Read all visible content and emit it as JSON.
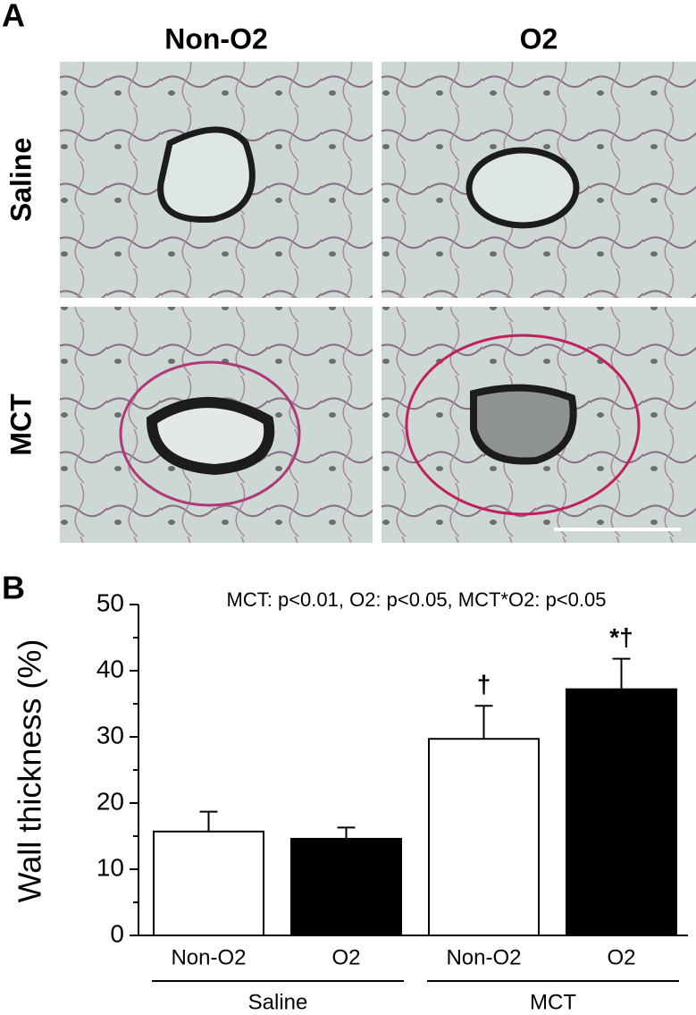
{
  "panel_a": {
    "label": "A",
    "columns": [
      "Non-O2",
      "O2"
    ],
    "rows": [
      "Saline",
      "MCT"
    ]
  },
  "chart_data": {
    "type": "bar",
    "panel_label": "B",
    "annotation": "MCT: p<0.01, O2: p<0.05, MCT*O2: p<0.05",
    "y_label": "Wall thickness (%)",
    "categories": [
      "Non-O2",
      "O2",
      "Non-O2",
      "O2"
    ],
    "groups": [
      {
        "label": "Saline",
        "span": [
          0,
          1
        ]
      },
      {
        "label": "MCT",
        "span": [
          2,
          3
        ]
      }
    ],
    "series": [
      {
        "values": [
          15.7,
          14.6,
          29.7,
          37.2
        ],
        "errors": [
          3.0,
          1.7,
          5.0,
          4.6
        ],
        "colors": [
          "#ffffff",
          "#000000",
          "#ffffff",
          "#000000"
        ]
      }
    ],
    "markers": [
      {
        "index": 2,
        "text": "†"
      },
      {
        "index": 3,
        "text": "*†"
      }
    ],
    "ylim": [
      0,
      50
    ],
    "yticks": [
      0,
      10,
      20,
      30,
      40,
      50
    ],
    "minor_yticks": [
      5,
      15,
      25,
      35,
      45
    ],
    "grid": false
  }
}
